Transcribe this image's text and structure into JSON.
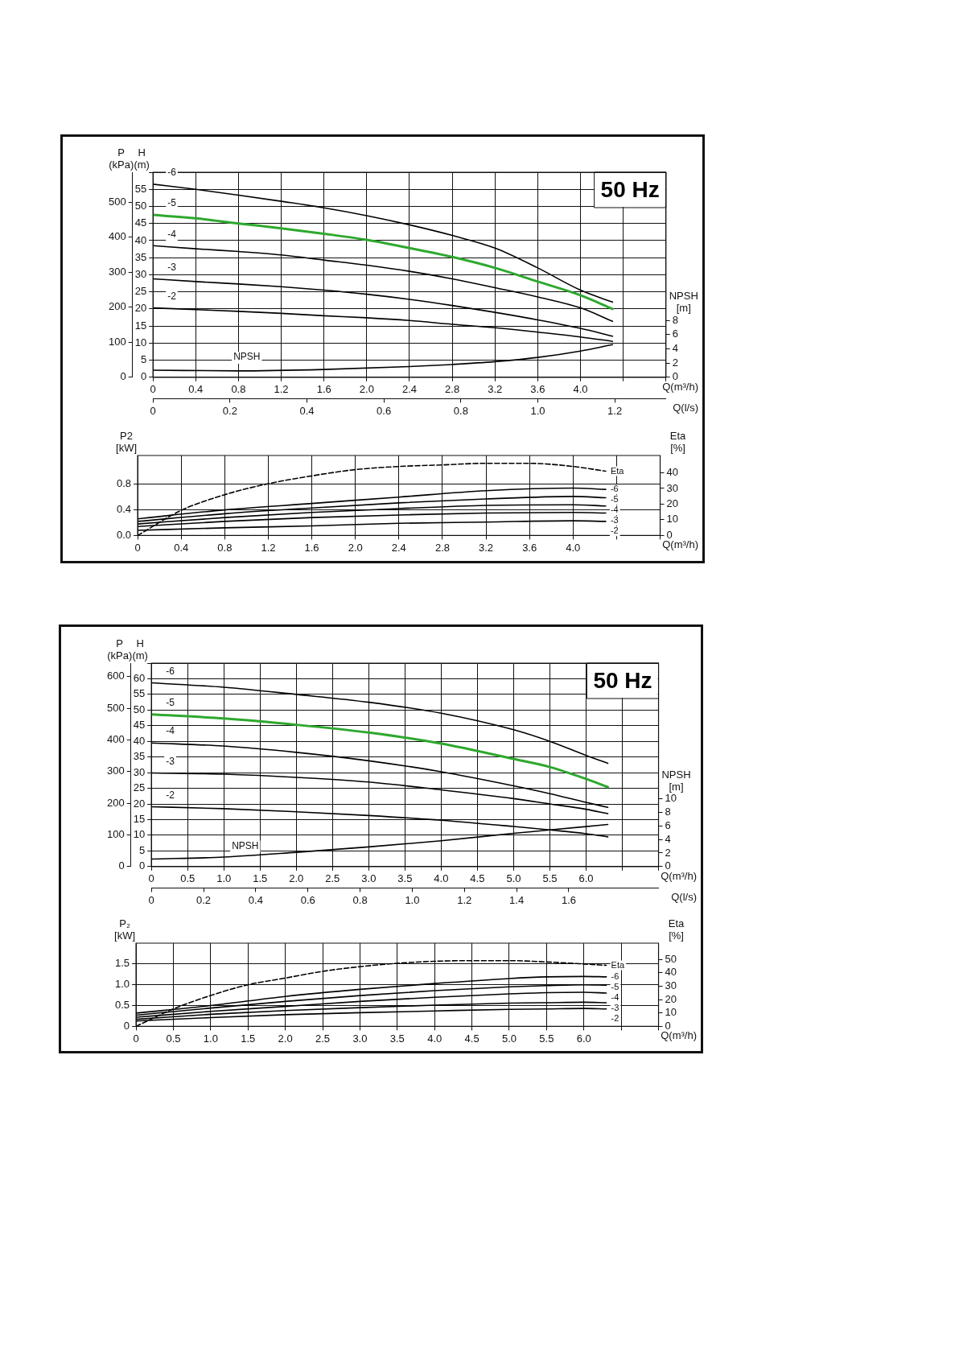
{
  "chart_data": [
    {
      "type": "line",
      "xlabel": "Q(m³/h)",
      "x2label": "Q(l/s)",
      "ylabel": "H (m)",
      "y2label": "P (kPa)",
      "y3label": "NPSH [m]",
      "annotations": [
        "50 Hz"
      ],
      "xlim": [
        0,
        4.8
      ],
      "xticks": [
        0,
        0.4,
        0.8,
        1.2,
        1.6,
        {
          "value": 2,
          "label": "2.0"
        },
        2.4,
        2.8,
        3.2,
        3.6,
        {
          "value": 4,
          "label": "4.0"
        },
        {
          "value": 4.4,
          "label": null
        },
        {
          "value": 4.8,
          "label": null
        }
      ],
      "x2lim": [
        0,
        1.333
      ],
      "x2ticks": [
        0,
        0.2,
        0.4,
        0.6,
        0.8,
        {
          "value": 1,
          "label": "1.0"
        },
        1.2
      ],
      "ylim": [
        0,
        60
      ],
      "yticks": [
        0,
        5,
        10,
        15,
        20,
        25,
        30,
        35,
        40,
        45,
        50,
        55,
        {
          "value": 60,
          "label": null
        }
      ],
      "y2lim": [
        0,
        586
      ],
      "y2ticks": [
        0,
        100,
        200,
        300,
        400,
        500
      ],
      "y3lim": [
        0,
        28.9
      ],
      "y3ticks": [
        0,
        2,
        4,
        6,
        8
      ],
      "grid": true,
      "legend": false,
      "series": [
        {
          "name": "-6",
          "color": "#000000",
          "x": [
            0,
            0.4,
            0.8,
            1.2,
            1.6,
            2.0,
            2.4,
            2.8,
            3.2,
            3.6,
            4.0,
            4.3
          ],
          "values": [
            56.5,
            55,
            53.3,
            51.5,
            49.6,
            47.3,
            44.6,
            41.5,
            37.8,
            32,
            25.5,
            22
          ]
        },
        {
          "name": "-5",
          "color": "#2ea82e",
          "x": [
            0,
            0.4,
            0.8,
            1.2,
            1.6,
            2.0,
            2.4,
            2.8,
            3.2,
            3.6,
            4.0,
            4.3
          ],
          "values": [
            47.5,
            46.5,
            45,
            43.6,
            42,
            40.2,
            37.8,
            35.2,
            32,
            28,
            24,
            20
          ]
        },
        {
          "name": "-4",
          "color": "#000000",
          "x": [
            0,
            0.4,
            0.8,
            1.2,
            1.6,
            2.0,
            2.4,
            2.8,
            3.2,
            3.6,
            4.0,
            4.3
          ],
          "values": [
            38.5,
            37.6,
            36.8,
            35.8,
            34.3,
            32.8,
            31,
            28.8,
            26.2,
            23.5,
            20.3,
            16.4
          ]
        },
        {
          "name": "-3",
          "color": "#000000",
          "x": [
            0,
            0.4,
            0.8,
            1.2,
            1.6,
            2.0,
            2.4,
            2.8,
            3.2,
            3.6,
            4.0,
            4.3
          ],
          "values": [
            28.8,
            28,
            27.3,
            26.5,
            25.5,
            24.3,
            22.8,
            21,
            19,
            16.8,
            14.3,
            12
          ]
        },
        {
          "name": "-2",
          "color": "#000000",
          "x": [
            0,
            0.4,
            0.8,
            1.2,
            1.6,
            2.0,
            2.4,
            2.8,
            3.2,
            3.6,
            4.0,
            4.3
          ],
          "values": [
            20.3,
            19.8,
            19.3,
            18.7,
            18,
            17.4,
            16.6,
            15.5,
            14.5,
            13.2,
            11.8,
            10.5
          ]
        },
        {
          "name": "NPSH",
          "color": "#000000",
          "axis": "y3",
          "x": [
            0,
            0.8,
            1.6,
            2.4,
            2.8,
            3.2,
            3.6,
            4.0,
            4.3
          ],
          "values": [
            1.0,
            0.9,
            1.1,
            1.5,
            1.8,
            2.2,
            2.8,
            3.7,
            4.6
          ]
        }
      ]
    },
    {
      "type": "line",
      "xlabel": "Q(m³/h)",
      "ylabel": "P2 [kW]",
      "y2label": "Eta [%]",
      "xlim": [
        0,
        4.8
      ],
      "xticks": [
        0,
        0.4,
        0.8,
        1.2,
        1.6,
        {
          "value": 2,
          "label": "2.0"
        },
        2.4,
        2.8,
        3.2,
        3.6,
        {
          "value": 4,
          "label": "4.0"
        },
        {
          "value": 4.4,
          "label": null
        },
        {
          "value": 4.8,
          "label": null
        }
      ],
      "ylim": [
        0,
        1.25
      ],
      "yticks": [
        {
          "value": 0,
          "label": "0.0"
        },
        0.4,
        0.8
      ],
      "y2lim": [
        0,
        51
      ],
      "y2ticks": [
        0,
        10,
        20,
        30,
        40
      ],
      "grid": true,
      "legend": false,
      "series": [
        {
          "name": "Eta",
          "color": "#000000",
          "axis": "y2",
          "line_style": "dashed",
          "x": [
            0,
            0.4,
            0.8,
            1.2,
            1.6,
            2.0,
            2.4,
            2.8,
            3.2,
            3.6,
            4.0,
            4.3
          ],
          "values": [
            0,
            16,
            26,
            33,
            38,
            42,
            44,
            45,
            46,
            46,
            44,
            41
          ]
        },
        {
          "name": "-6",
          "color": "#000000",
          "x": [
            0,
            0.8,
            1.6,
            2.4,
            3.2,
            4.0,
            4.3
          ],
          "values": [
            0.26,
            0.4,
            0.5,
            0.6,
            0.7,
            0.74,
            0.72
          ]
        },
        {
          "name": "-5",
          "color": "#000000",
          "x": [
            0,
            0.8,
            1.6,
            2.4,
            3.2,
            4.0,
            4.3
          ],
          "values": [
            0.22,
            0.34,
            0.43,
            0.51,
            0.57,
            0.61,
            0.59
          ]
        },
        {
          "name": "-4",
          "color": "#000000",
          "x": [
            0,
            0.8,
            1.6,
            2.4,
            3.2,
            4.0,
            4.3
          ],
          "values": [
            0.18,
            0.28,
            0.36,
            0.42,
            0.47,
            0.48,
            0.46
          ]
        },
        {
          "name": "-3",
          "color": "#000000",
          "x": [
            0,
            0.8,
            1.6,
            2.4,
            3.2,
            4.0,
            4.3
          ],
          "values": [
            0.14,
            0.22,
            0.28,
            0.32,
            0.35,
            0.36,
            0.35
          ]
        },
        {
          "name": "-2",
          "color": "#000000",
          "x": [
            0,
            0.8,
            1.6,
            2.4,
            3.2,
            4.0,
            4.3
          ],
          "values": [
            0.08,
            0.12,
            0.15,
            0.19,
            0.21,
            0.23,
            0.22
          ]
        }
      ]
    },
    {
      "type": "line",
      "xlabel": "Q(m³/h)",
      "x2label": "Q(l/s)",
      "ylabel": "H (m)",
      "y2label": "P (kPa)",
      "y3label": "NPSH [m]",
      "annotations": [
        "50 Hz"
      ],
      "xlim": [
        0,
        7
      ],
      "xticks": [
        0,
        0.5,
        {
          "value": 1,
          "label": "1.0"
        },
        1.5,
        {
          "value": 2,
          "label": "2.0"
        },
        2.5,
        {
          "value": 3,
          "label": "3.0"
        },
        3.5,
        {
          "value": 4,
          "label": "4.0"
        },
        4.5,
        {
          "value": 5,
          "label": "5.0"
        },
        5.5,
        {
          "value": 6,
          "label": "6.0"
        },
        {
          "value": 6.5,
          "label": null
        },
        {
          "value": 7,
          "label": null
        }
      ],
      "x2lim": [
        0,
        1.944
      ],
      "x2ticks": [
        0,
        0.2,
        0.4,
        0.6,
        0.8,
        {
          "value": 1,
          "label": "1.0"
        },
        1.2,
        1.4,
        1.6
      ],
      "ylim": [
        0,
        65
      ],
      "yticks": [
        0,
        5,
        10,
        15,
        20,
        25,
        30,
        35,
        40,
        45,
        50,
        55,
        60,
        {
          "value": 65,
          "label": null
        }
      ],
      "y2lim": [
        0,
        643
      ],
      "y2ticks": [
        0,
        100,
        200,
        300,
        400,
        500,
        600
      ],
      "y3lim": [
        0,
        30
      ],
      "y3ticks": [
        0,
        2,
        4,
        6,
        8,
        10
      ],
      "grid": true,
      "legend": false,
      "series": [
        {
          "name": "-6",
          "color": "#000000",
          "x": [
            0,
            1,
            2,
            3,
            4,
            5,
            5.5,
            6,
            6.3
          ],
          "values": [
            58.7,
            57.3,
            55,
            52.5,
            49,
            43.7,
            40,
            35.5,
            33
          ]
        },
        {
          "name": "-5",
          "color": "#2ea82e",
          "x": [
            0,
            1,
            2,
            3,
            4,
            5,
            5.5,
            6,
            6.3
          ],
          "values": [
            48.6,
            47.3,
            45.3,
            42.8,
            39.3,
            34.4,
            31.8,
            28,
            25.4
          ]
        },
        {
          "name": "-4",
          "color": "#000000",
          "x": [
            0,
            1,
            2,
            3,
            4,
            5,
            5.5,
            6,
            6.3
          ],
          "values": [
            39.5,
            38.5,
            36.5,
            33.8,
            30.3,
            25.8,
            23.3,
            20.5,
            18.9
          ]
        },
        {
          "name": "-3",
          "color": "#000000",
          "x": [
            0,
            1,
            2,
            3,
            4,
            5,
            5.5,
            6,
            6.3
          ],
          "values": [
            29.9,
            29.5,
            28.5,
            27,
            24.5,
            21.7,
            20,
            18.3,
            16.9
          ]
        },
        {
          "name": "-2",
          "color": "#000000",
          "x": [
            0,
            1,
            2,
            3,
            4,
            5,
            5.5,
            6,
            6.3
          ],
          "values": [
            19.1,
            18.5,
            17.5,
            16.3,
            14.8,
            12.8,
            11.7,
            10.5,
            9.5
          ]
        },
        {
          "name": "NPSH",
          "color": "#000000",
          "axis": "y3",
          "x": [
            0,
            1,
            2,
            3,
            4,
            5,
            5.5,
            6,
            6.3
          ],
          "values": [
            1.1,
            1.4,
            2.1,
            2.9,
            3.8,
            4.9,
            5.4,
            5.9,
            6.2
          ]
        }
      ]
    },
    {
      "type": "line",
      "xlabel": "Q(m³/h)",
      "ylabel": "P₂ [kW]",
      "y2label": "Eta [%]",
      "xlim": [
        0,
        7
      ],
      "xticks": [
        0,
        0.5,
        {
          "value": 1,
          "label": "1.0"
        },
        1.5,
        {
          "value": 2,
          "label": "2.0"
        },
        2.5,
        {
          "value": 3,
          "label": "3.0"
        },
        3.5,
        {
          "value": 4,
          "label": "4.0"
        },
        4.5,
        {
          "value": 5,
          "label": "5.0"
        },
        5.5,
        {
          "value": 6,
          "label": "6.0"
        },
        {
          "value": 6.5,
          "label": null
        },
        {
          "value": 7,
          "label": null
        }
      ],
      "ylim": [
        0,
        2
      ],
      "yticks": [
        0,
        0.5,
        {
          "value": 1,
          "label": "1.0"
        },
        1.5
      ],
      "y2lim": [
        0,
        62
      ],
      "y2ticks": [
        0,
        10,
        20,
        30,
        40,
        50
      ],
      "grid": true,
      "legend": false,
      "series": [
        {
          "name": "Eta",
          "color": "#000000",
          "axis": "y2",
          "line_style": "dashed",
          "x": [
            0,
            0.5,
            1,
            1.5,
            2,
            2.5,
            3,
            3.5,
            4,
            4.5,
            5,
            5.5,
            6,
            6.3
          ],
          "values": [
            0,
            13,
            23,
            31,
            36,
            41,
            44.5,
            47,
            48.5,
            49,
            49,
            48,
            46.5,
            45.5
          ]
        },
        {
          "name": "-6",
          "color": "#000000",
          "x": [
            0,
            1,
            2,
            3,
            4,
            5,
            5.5,
            6,
            6.3
          ],
          "values": [
            0.32,
            0.5,
            0.72,
            0.89,
            1.03,
            1.15,
            1.19,
            1.2,
            1.19
          ]
        },
        {
          "name": "-5",
          "color": "#000000",
          "x": [
            0,
            1,
            2,
            3,
            4,
            5,
            5.5,
            6,
            6.3
          ],
          "values": [
            0.27,
            0.44,
            0.6,
            0.74,
            0.86,
            0.95,
            0.98,
            1.0,
            0.99
          ]
        },
        {
          "name": "-4",
          "color": "#000000",
          "x": [
            0,
            1,
            2,
            3,
            4,
            5,
            5.5,
            6,
            6.3
          ],
          "values": [
            0.22,
            0.36,
            0.48,
            0.6,
            0.7,
            0.78,
            0.81,
            0.82,
            0.8
          ]
        },
        {
          "name": "-3",
          "color": "#000000",
          "x": [
            0,
            1,
            2,
            3,
            4,
            5,
            5.5,
            6,
            6.3
          ],
          "values": [
            0.17,
            0.29,
            0.38,
            0.45,
            0.51,
            0.56,
            0.57,
            0.58,
            0.57
          ]
        },
        {
          "name": "-2",
          "color": "#000000",
          "x": [
            0,
            1,
            2,
            3,
            4,
            5,
            5.5,
            6,
            6.3
          ],
          "values": [
            0.13,
            0.21,
            0.28,
            0.33,
            0.37,
            0.41,
            0.42,
            0.43,
            0.42
          ]
        }
      ]
    }
  ]
}
